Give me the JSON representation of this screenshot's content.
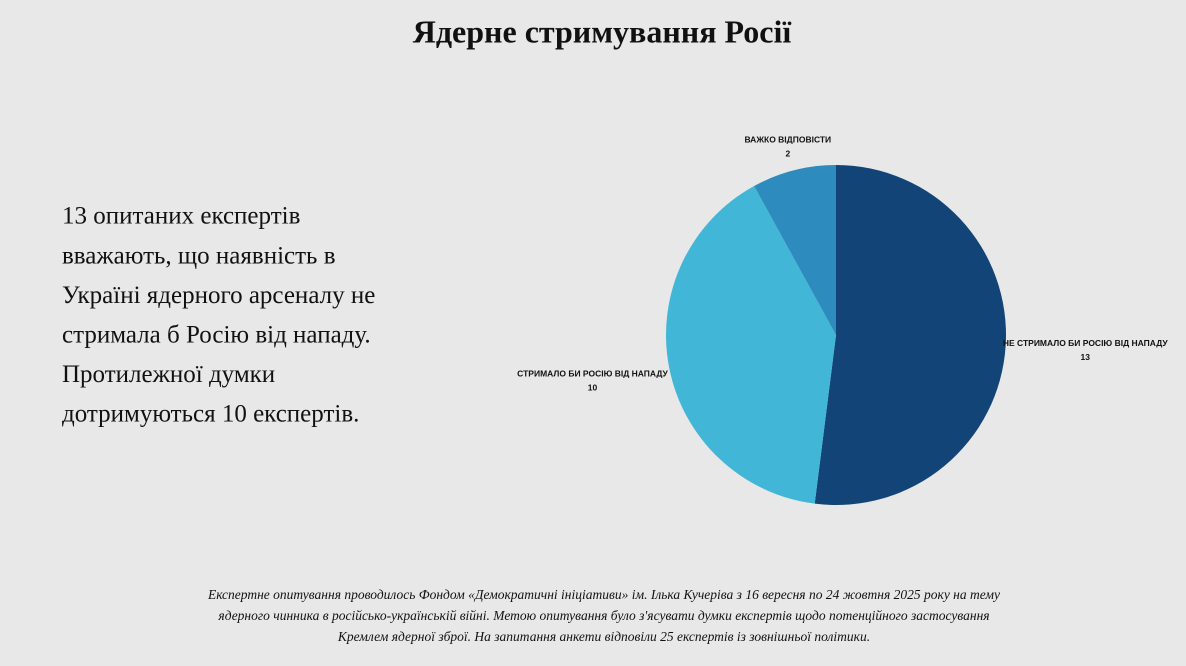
{
  "chart_data": {
    "type": "pie",
    "title": "Ядерне стримування Росії",
    "description": [
      "13 опитаних експертів",
      "вважають, що наявність в",
      "Україні ядерного арсеналу не",
      "стримала б Росію від нападу.",
      "Протилежної думки",
      "дотримуються 10 експертів."
    ],
    "footnote": [
      "Експертне опитування проводилось Фондом «Демократичні ініціативи» ім. Ілька Кучеріва з 16 вересня по 24 жовтня 2025 року на тему",
      "ядерного чинника в російсько-українській війні. Метою опитування було з'ясувати думки експертів щодо потенційного застосування",
      "Кремлем ядерної зброї. На запитання анкети відповіли 25 експертів із зовнішньої політики."
    ],
    "categories": [
      "НЕ СТРИМАЛО БИ РОСІЮ ВІД НАПАДУ",
      "СТРИМАЛО БИ РОСІЮ ВІД НАПАДУ",
      "ВАЖКО ВІДПОВІСТИ"
    ],
    "values": [
      13,
      10,
      2
    ],
    "colors": [
      "#134477",
      "#42b6d6",
      "#2e8bbd"
    ]
  }
}
